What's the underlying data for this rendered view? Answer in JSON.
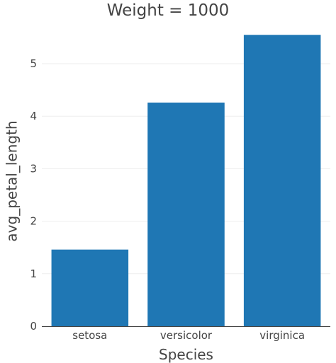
{
  "chart_data": {
    "type": "bar",
    "title": "Weight = 1000",
    "xlabel": "Species",
    "ylabel": "avg_petal_length",
    "categories": [
      "setosa",
      "versicolor",
      "virginica"
    ],
    "values": [
      1.46,
      4.26,
      5.55
    ],
    "ylim": [
      0,
      5.85
    ],
    "yticks": [
      0,
      1,
      2,
      3,
      4,
      5
    ],
    "grid": true,
    "bar_color": "#1f77b4"
  }
}
